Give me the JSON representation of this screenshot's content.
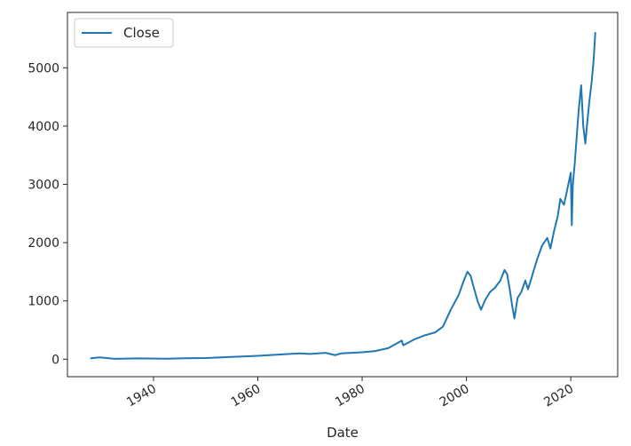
{
  "chart_data": {
    "type": "line",
    "title": "",
    "xlabel": "Date",
    "ylabel": "",
    "xlim": [
      1923.5,
      2029
    ],
    "ylim": [
      -300,
      5950
    ],
    "x_ticks": [
      1940,
      1960,
      1980,
      2000,
      2020
    ],
    "y_ticks": [
      0,
      1000,
      2000,
      3000,
      4000,
      5000
    ],
    "grid": false,
    "legend": {
      "position": "upper left",
      "entries": [
        "Close"
      ]
    },
    "series": [
      {
        "name": "Close",
        "color": "#1f77b4",
        "x": [
          1928.0,
          1929.7,
          1932.5,
          1937.0,
          1942.5,
          1946.0,
          1950.0,
          1955.0,
          1960.0,
          1965.0,
          1968.0,
          1970.0,
          1973.0,
          1974.8,
          1976.0,
          1980.0,
          1982.5,
          1985.0,
          1987.6,
          1987.9,
          1990.0,
          1992.0,
          1994.0,
          1995.5,
          1997.0,
          1998.5,
          1999.5,
          2000.2,
          2000.8,
          2001.5,
          2002.2,
          2002.8,
          2003.5,
          2004.5,
          2005.5,
          2006.5,
          2007.3,
          2007.8,
          2008.3,
          2008.8,
          2009.2,
          2009.8,
          2010.5,
          2011.3,
          2011.8,
          2012.5,
          2013.5,
          2014.5,
          2015.5,
          2016.1,
          2016.8,
          2017.5,
          2018.0,
          2018.7,
          2019.3,
          2020.0,
          2020.2,
          2020.4,
          2020.8,
          2021.5,
          2022.0,
          2022.4,
          2022.8,
          2023.2,
          2023.6,
          2024.0,
          2024.4,
          2024.7
        ],
        "y": [
          17,
          31,
          7,
          15,
          9,
          17,
          20,
          40,
          58,
          85,
          100,
          90,
          110,
          70,
          100,
          120,
          140,
          190,
          320,
          240,
          340,
          410,
          460,
          560,
          850,
          1100,
          1350,
          1500,
          1430,
          1200,
          980,
          850,
          1000,
          1150,
          1230,
          1350,
          1530,
          1460,
          1200,
          900,
          700,
          1050,
          1150,
          1350,
          1200,
          1400,
          1700,
          1950,
          2080,
          1900,
          2200,
          2450,
          2750,
          2650,
          2900,
          3200,
          2300,
          3000,
          3400,
          4250,
          4700,
          4000,
          3700,
          4100,
          4450,
          4750,
          5150,
          5600
        ]
      }
    ]
  }
}
